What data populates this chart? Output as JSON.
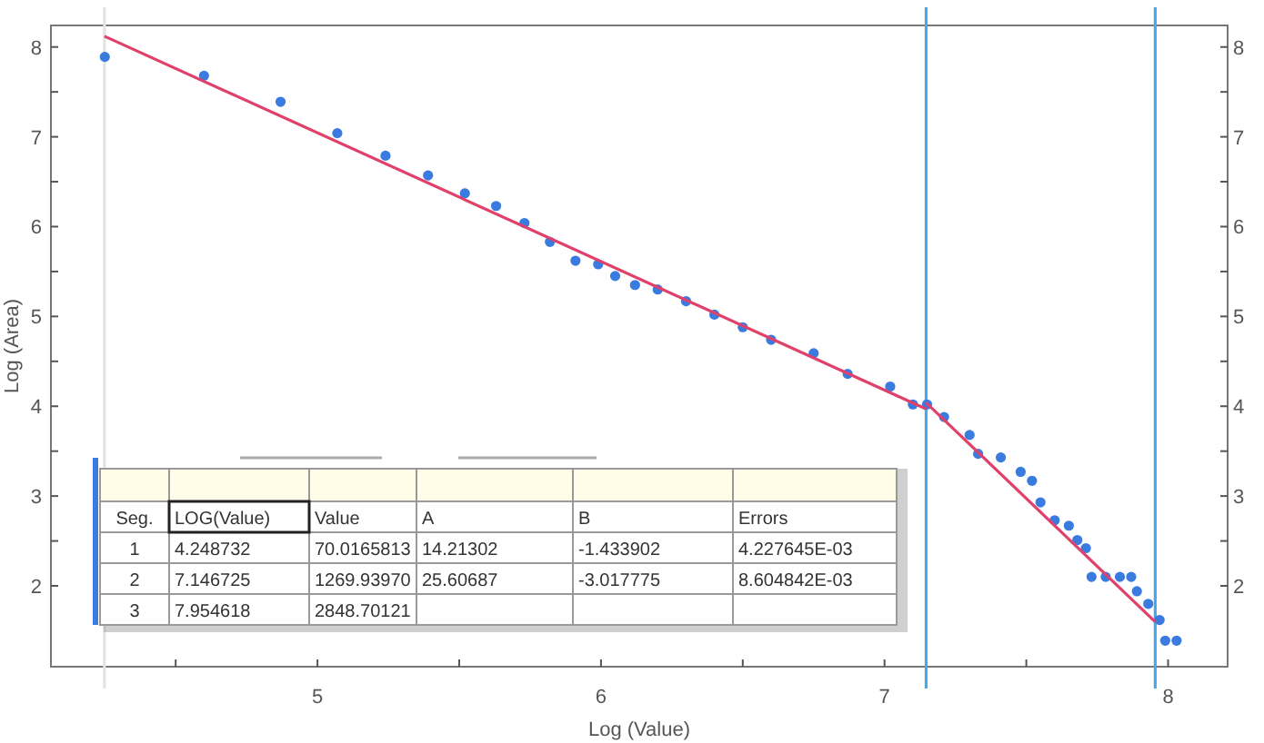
{
  "chart_data": {
    "type": "scatter",
    "xlabel": "Log (Value)",
    "ylabel": "Log (Area)",
    "xlim": [
      4.06,
      8.21
    ],
    "ylim": [
      1.1,
      8.24
    ],
    "xticks": [
      {
        "value": 4.5,
        "label": null
      },
      5,
      {
        "value": 5.5,
        "label": null
      },
      6,
      {
        "value": 6.5,
        "label": null
      },
      7,
      {
        "value": 7.5,
        "label": null
      },
      8
    ],
    "yticks": [
      2,
      {
        "value": 2.5,
        "label": null
      },
      3,
      {
        "value": 3.5,
        "label": null
      },
      4,
      {
        "value": 4.5,
        "label": null
      },
      5,
      {
        "value": 5.5,
        "label": null
      },
      6,
      {
        "value": 6.5,
        "label": null
      },
      7,
      {
        "value": 7.5,
        "label": null
      },
      8
    ],
    "y2lim": [
      1.1,
      8.24
    ],
    "y2ticks": [
      2,
      {
        "value": 2.5,
        "label": null
      },
      3,
      {
        "value": 3.5,
        "label": null
      },
      4,
      {
        "value": 4.5,
        "label": null
      },
      5,
      {
        "value": 5.5,
        "label": null
      },
      6,
      {
        "value": 6.5,
        "label": null
      },
      7,
      {
        "value": 7.5,
        "label": null
      },
      8
    ],
    "grid": false,
    "series": [
      {
        "marker": "circle",
        "color": "#3a7be0",
        "x": [
          4.25,
          4.6,
          4.87,
          5.07,
          5.24,
          5.39,
          5.52,
          5.63,
          5.73,
          5.82,
          5.91,
          5.99,
          6.05,
          6.12,
          6.2,
          6.3,
          6.4,
          6.5,
          6.6,
          6.75,
          6.87,
          7.02,
          7.1,
          7.15,
          7.21,
          7.3,
          7.33,
          7.41,
          7.48,
          7.52,
          7.55,
          7.6,
          7.65,
          7.68,
          7.71,
          7.73,
          7.78,
          7.83,
          7.87,
          7.89,
          7.93,
          7.97,
          7.99,
          8.03
        ],
        "values": [
          7.89,
          7.68,
          7.39,
          7.04,
          6.79,
          6.57,
          6.37,
          6.23,
          6.04,
          5.83,
          5.62,
          5.58,
          5.45,
          5.35,
          5.3,
          5.17,
          5.02,
          4.88,
          4.74,
          4.59,
          4.36,
          4.22,
          4.02,
          4.02,
          3.88,
          3.68,
          3.47,
          3.43,
          3.27,
          3.17,
          2.93,
          2.73,
          2.67,
          2.51,
          2.42,
          2.1,
          2.1,
          2.1,
          2.1,
          1.94,
          1.8,
          1.62,
          1.39,
          1.39
        ]
      },
      {
        "type": "line",
        "marker": "none",
        "line_style": "solid",
        "color": "#e0406a",
        "x": [
          4.248732,
          7.146725
        ],
        "values": [
          8.12,
          3.97
        ]
      },
      {
        "type": "line",
        "marker": "none",
        "line_style": "solid",
        "color": "#e0406a",
        "x": [
          7.146725,
          7.954618
        ],
        "values": [
          4.04,
          1.6
        ]
      }
    ],
    "ref_lines": [
      {
        "axis": "x",
        "value": 4.248732,
        "color": "#e4e4e4"
      },
      {
        "axis": "x",
        "value": 7.146725,
        "color": "#4aa8e8"
      },
      {
        "axis": "x",
        "value": 7.954618,
        "color": "#4aa8e8"
      }
    ],
    "annotations": [
      "Seg.",
      "LOG(Value)",
      "Value",
      "A",
      "B",
      "Errors",
      "1",
      "4.248732",
      "70.0165813",
      "14.21302",
      "-1.433902",
      "4.227645E-03",
      "2",
      "7.146725",
      "1269.93970",
      "25.60687",
      "-3.017775",
      "8.604842E-03",
      "3",
      "7.954618",
      "2848.70121"
    ]
  }
}
